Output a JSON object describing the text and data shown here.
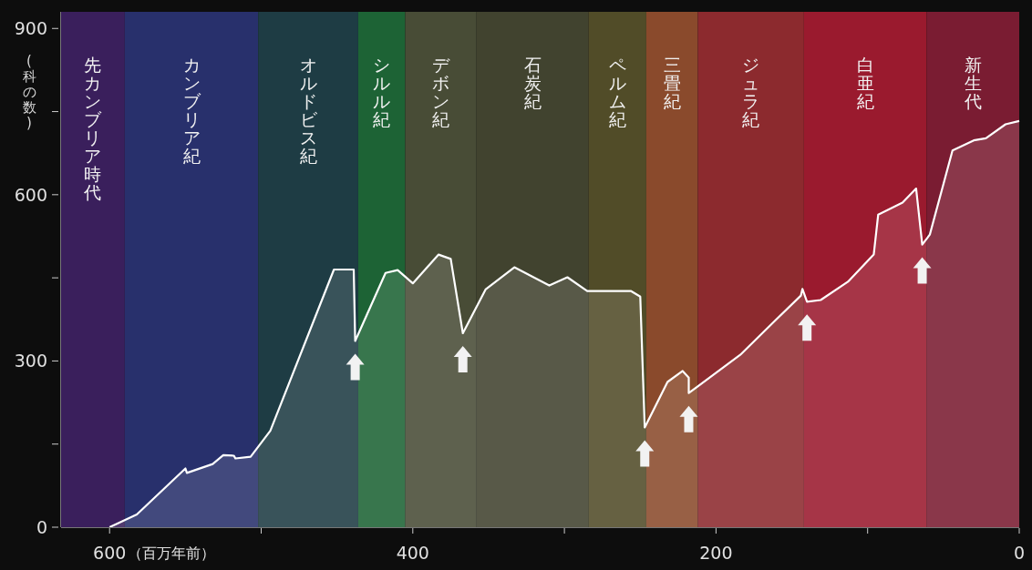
{
  "chart_data": {
    "type": "area",
    "ylabel": "(科の数)",
    "xlabel": "（百万年前）",
    "color": "#ffffff",
    "x": [
      600,
      582,
      550,
      549,
      532,
      525,
      518,
      517,
      507,
      494,
      452,
      439,
      438,
      418,
      410,
      400,
      383,
      375,
      367,
      352,
      333,
      310,
      298,
      285,
      256,
      250,
      247,
      232,
      222,
      218,
      218,
      184,
      161,
      144,
      143,
      140,
      131,
      113,
      96,
      93,
      77,
      68,
      64,
      59,
      44,
      30,
      22,
      9,
      0
    ],
    "values": [
      0,
      23,
      106,
      98,
      114,
      130,
      129,
      124,
      127,
      174,
      465,
      465,
      336,
      459,
      464,
      440,
      492,
      484,
      350,
      429,
      469,
      436,
      451,
      426,
      426,
      416,
      180,
      262,
      282,
      270,
      242,
      311,
      373,
      418,
      430,
      407,
      410,
      443,
      492,
      564,
      586,
      611,
      510,
      528,
      680,
      698,
      702,
      727,
      733
    ],
    "xlim": [
      632,
      0
    ],
    "ylim": [
      0,
      930
    ],
    "xticks": [
      600,
      {
        "value": 500,
        "label": null
      },
      400,
      {
        "value": 300,
        "label": null
      },
      200,
      {
        "value": 100,
        "label": null
      },
      0
    ],
    "yticks": [
      0,
      {
        "value": 150,
        "label": null
      },
      300,
      {
        "value": 450,
        "label": null
      },
      600,
      {
        "value": 750,
        "label": null
      },
      900
    ],
    "bands": [
      {
        "axis": "x",
        "from": 632,
        "to": 590,
        "label": "先カンブリア時代",
        "color": "#3a1f5c"
      },
      {
        "axis": "x",
        "from": 590,
        "to": 502,
        "label": "カンブリア紀",
        "color": "#28306c"
      },
      {
        "axis": "x",
        "from": 502,
        "to": 436,
        "label": "オルドビス紀",
        "color": "#1e3c44"
      },
      {
        "axis": "x",
        "from": 436,
        "to": 405,
        "label": "シルル紀",
        "color": "#1d6335"
      },
      {
        "axis": "x",
        "from": 405,
        "to": 358,
        "label": "デボン紀",
        "color": "#484c36"
      },
      {
        "axis": "x",
        "from": 358,
        "to": 284,
        "label": "石炭紀",
        "color": "#41432f"
      },
      {
        "axis": "x",
        "from": 284,
        "to": 246,
        "label": "ペルム紀",
        "color": "#514c28"
      },
      {
        "axis": "x",
        "from": 246,
        "to": 212,
        "label": "三畳紀",
        "color": "#8a4a2c"
      },
      {
        "axis": "x",
        "from": 212,
        "to": 142,
        "label": "ジュラ紀",
        "color": "#8c2a2e"
      },
      {
        "axis": "x",
        "from": 142,
        "to": 61,
        "label": "白亜紀",
        "color": "#9a1a2e"
      },
      {
        "axis": "x",
        "from": 61,
        "to": 0,
        "label": "新生代",
        "color": "#7a1c32"
      }
    ]
  }
}
